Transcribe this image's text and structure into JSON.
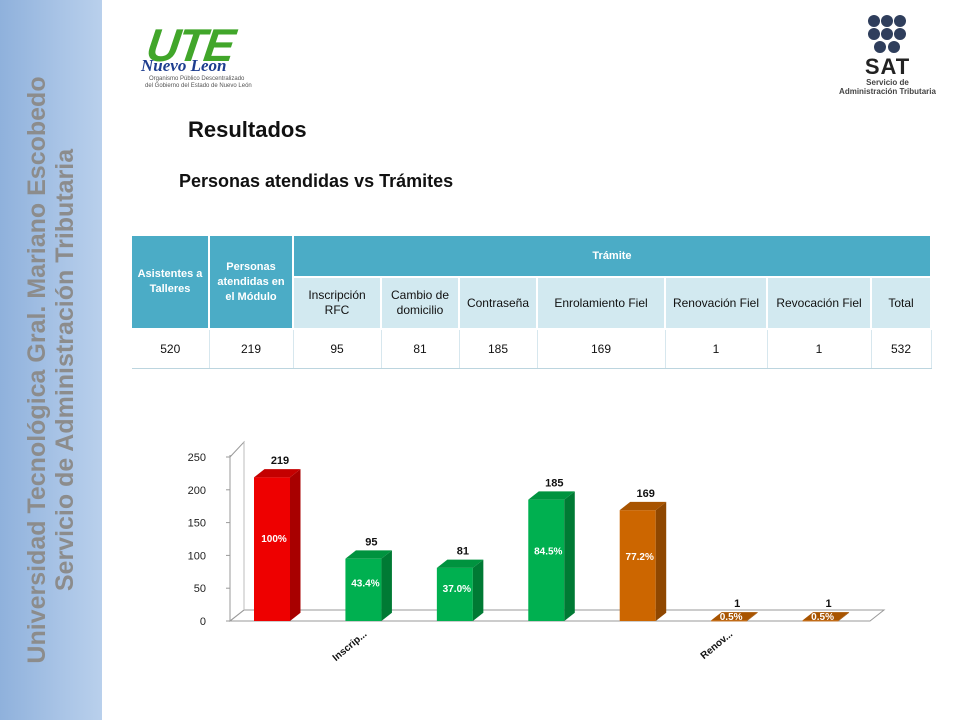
{
  "sidebar": {
    "line1": "Universidad Tecnológica Gral. Mariano Escobedo",
    "line2": "Servicio de Administración Tributaria"
  },
  "logos": {
    "ute": {
      "name": "UTE",
      "region": "Nuevo Leon",
      "sub1": "Organismo Público Descentralizado",
      "sub2": "del Gobierno del Estado de Nuevo León"
    },
    "sat": {
      "name": "SAT",
      "sub1": "Servicio de",
      "sub2": "Administración Tributaria"
    }
  },
  "page": {
    "title": "Resultados",
    "subtitle": "Personas atendidas vs Trámites"
  },
  "table": {
    "col_asistentes": "Asistentes a Talleres",
    "col_personas": "Personas atendidas en el Módulo",
    "group_tramite": "Trámite",
    "tramites": [
      "Inscripción RFC",
      "Cambio de domicilio",
      "Contraseña",
      "Enrolamiento Fiel",
      "Renovación Fiel",
      "Revocación Fiel",
      "Total"
    ],
    "row": [
      "520",
      "219",
      "95",
      "81",
      "185",
      "169",
      "1",
      "1",
      "532"
    ]
  },
  "chart_data": {
    "type": "bar",
    "title": "",
    "xlabel": "",
    "ylabel": "",
    "ylim": [
      0,
      250
    ],
    "yticks": [
      "0",
      "50",
      "100",
      "150",
      "200",
      "250"
    ],
    "categories": [
      "",
      "Inscrip...",
      "",
      "",
      "",
      "Renov...",
      ""
    ],
    "values": [
      219,
      95,
      81,
      185,
      169,
      1,
      1
    ],
    "value_labels": [
      "219",
      "95",
      "81",
      "185",
      "169",
      "1",
      "1"
    ],
    "pct_labels": [
      "100%",
      "43.4%",
      "37.0%",
      "84.5%",
      "77.2%",
      "0.5%",
      "0.5%"
    ],
    "bar_colors": [
      "#ee0000",
      "#00b050",
      "#00b050",
      "#00b050",
      "#cc6600",
      "#cc6600",
      "#cc6600"
    ],
    "side_colors": [
      "#a80000",
      "#007a34",
      "#007a34",
      "#007a34",
      "#8f4700",
      "#8f4700",
      "#8f4700"
    ],
    "top_colors": [
      "#c40000",
      "#00933f",
      "#00933f",
      "#00933f",
      "#a85400",
      "#a85400",
      "#a85400"
    ],
    "grid": false,
    "legend": "none"
  }
}
